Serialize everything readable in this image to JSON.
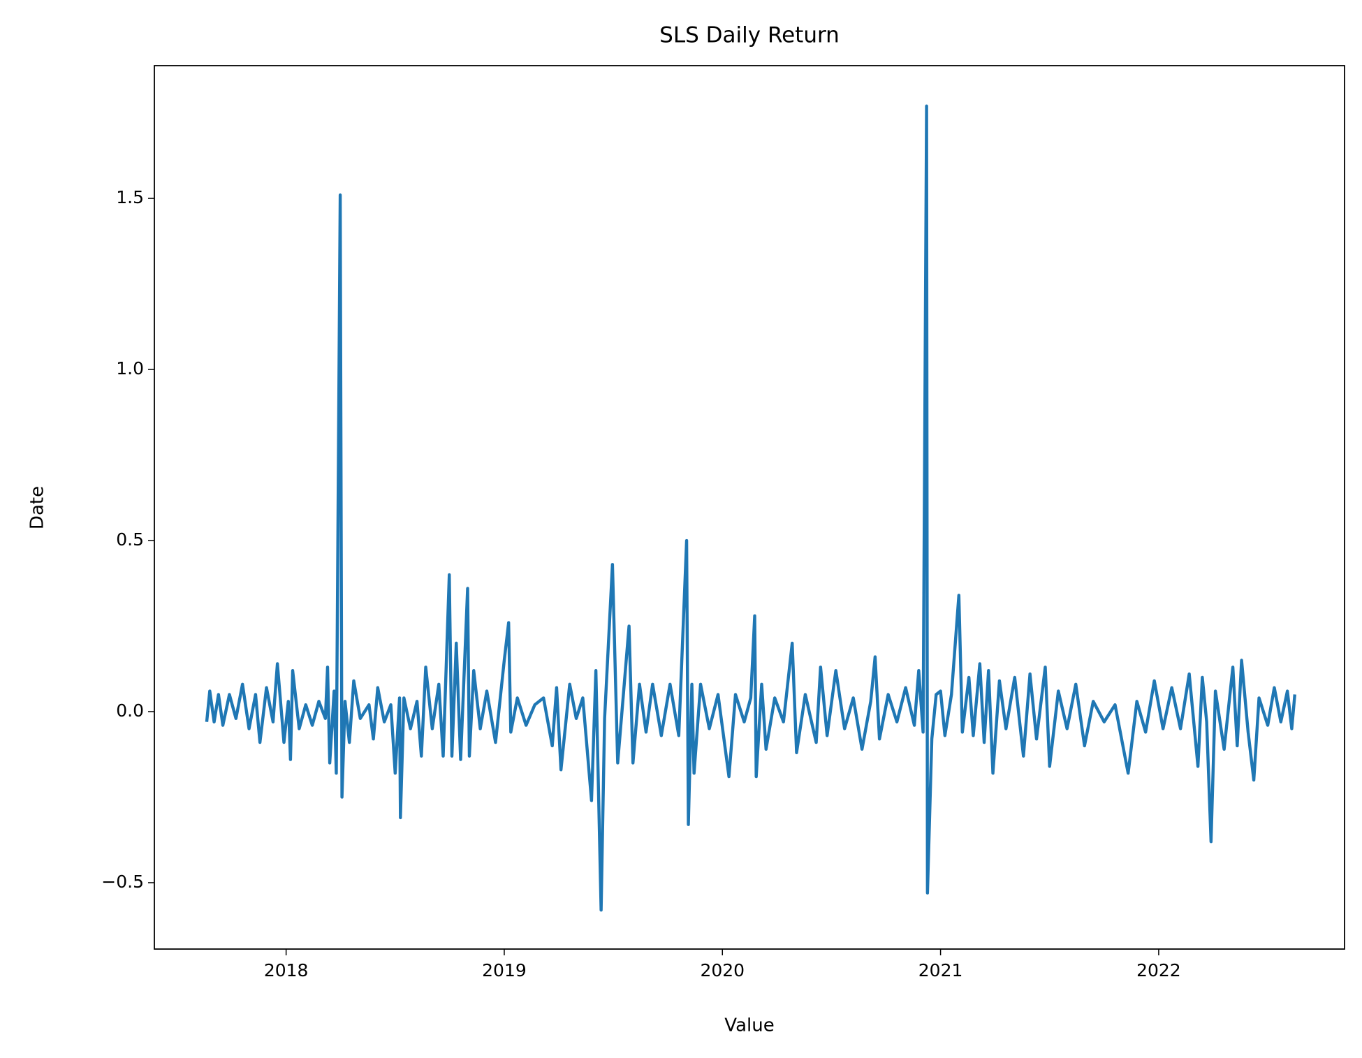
{
  "chart_data": {
    "type": "line",
    "title": "SLS Daily Return",
    "x_label": "Value",
    "y_label": "Date",
    "color": "#1f77b4",
    "grid": false,
    "x": [
      2017.636,
      2017.65,
      2017.67,
      2017.69,
      2017.71,
      2017.74,
      2017.77,
      2017.8,
      2017.83,
      2017.86,
      2017.88,
      2017.91,
      2017.94,
      2017.96,
      2017.99,
      2018.01,
      2018.02,
      2018.03,
      2018.06,
      2018.09,
      2018.12,
      2018.15,
      2018.18,
      2018.19,
      2018.2,
      2018.22,
      2018.23,
      2018.248,
      2018.256,
      2018.27,
      2018.29,
      2018.31,
      2018.34,
      2018.38,
      2018.4,
      2018.42,
      2018.45,
      2018.48,
      2018.5,
      2018.52,
      2018.524,
      2018.54,
      2018.57,
      2018.6,
      2018.62,
      2018.64,
      2018.67,
      2018.7,
      2018.72,
      2018.748,
      2018.76,
      2018.78,
      2018.8,
      2018.832,
      2018.84,
      2018.86,
      2018.89,
      2018.92,
      2018.96,
      2019.0,
      2019.02,
      2019.03,
      2019.06,
      2019.1,
      2019.14,
      2019.18,
      2019.22,
      2019.24,
      2019.26,
      2019.3,
      2019.33,
      2019.36,
      2019.4,
      2019.42,
      2019.444,
      2019.46,
      2019.496,
      2019.52,
      2019.55,
      2019.572,
      2019.59,
      2019.62,
      2019.65,
      2019.68,
      2019.72,
      2019.76,
      2019.8,
      2019.836,
      2019.844,
      2019.86,
      2019.87,
      2019.9,
      2019.94,
      2019.98,
      2020.03,
      2020.06,
      2020.1,
      2020.13,
      2020.148,
      2020.155,
      2020.18,
      2020.2,
      2020.24,
      2020.28,
      2020.32,
      2020.34,
      2020.38,
      2020.43,
      2020.45,
      2020.48,
      2020.52,
      2020.56,
      2020.6,
      2020.64,
      2020.68,
      2020.7,
      2020.72,
      2020.76,
      2020.8,
      2020.84,
      2020.88,
      2020.9,
      2020.92,
      2020.936,
      2020.94,
      2020.96,
      2020.98,
      2021.0,
      2021.02,
      2021.05,
      2021.084,
      2021.1,
      2021.13,
      2021.15,
      2021.18,
      2021.2,
      2021.22,
      2021.24,
      2021.27,
      2021.3,
      2021.34,
      2021.38,
      2021.41,
      2021.44,
      2021.48,
      2021.5,
      2021.54,
      2021.58,
      2021.62,
      2021.66,
      2021.7,
      2021.75,
      2021.8,
      2021.86,
      2021.9,
      2021.94,
      2021.98,
      2022.02,
      2022.06,
      2022.1,
      2022.14,
      2022.18,
      2022.2,
      2022.22,
      2022.24,
      2022.26,
      2022.3,
      2022.34,
      2022.36,
      2022.38,
      2022.41,
      2022.436,
      2022.46,
      2022.5,
      2022.53,
      2022.56,
      2022.59,
      2022.61,
      2022.624
    ],
    "values": [
      -0.03,
      0.06,
      -0.03,
      0.05,
      -0.04,
      0.05,
      -0.02,
      0.08,
      -0.05,
      0.05,
      -0.09,
      0.07,
      -0.03,
      0.14,
      -0.09,
      0.03,
      -0.14,
      0.12,
      -0.05,
      0.02,
      -0.04,
      0.03,
      -0.02,
      0.13,
      -0.15,
      0.06,
      -0.18,
      1.51,
      -0.25,
      0.03,
      -0.09,
      0.09,
      -0.02,
      0.02,
      -0.08,
      0.07,
      -0.03,
      0.02,
      -0.18,
      0.04,
      -0.31,
      0.04,
      -0.05,
      0.03,
      -0.13,
      0.13,
      -0.05,
      0.08,
      -0.13,
      0.4,
      -0.13,
      0.2,
      -0.14,
      0.36,
      -0.13,
      0.12,
      -0.05,
      0.06,
      -0.09,
      0.15,
      0.26,
      -0.06,
      0.04,
      -0.04,
      0.02,
      0.04,
      -0.1,
      0.07,
      -0.17,
      0.08,
      -0.02,
      0.04,
      -0.26,
      0.12,
      -0.58,
      -0.02,
      0.43,
      -0.15,
      0.08,
      0.25,
      -0.15,
      0.08,
      -0.06,
      0.08,
      -0.07,
      0.08,
      -0.07,
      0.5,
      -0.33,
      0.08,
      -0.18,
      0.08,
      -0.05,
      0.05,
      -0.19,
      0.05,
      -0.03,
      0.04,
      0.28,
      -0.19,
      0.08,
      -0.11,
      0.04,
      -0.03,
      0.2,
      -0.12,
      0.05,
      -0.09,
      0.13,
      -0.07,
      0.12,
      -0.05,
      0.04,
      -0.11,
      0.03,
      0.16,
      -0.08,
      0.05,
      -0.03,
      0.07,
      -0.04,
      0.12,
      -0.06,
      1.77,
      -0.53,
      -0.08,
      0.05,
      0.06,
      -0.07,
      0.05,
      0.34,
      -0.06,
      0.1,
      -0.07,
      0.14,
      -0.09,
      0.12,
      -0.18,
      0.09,
      -0.05,
      0.1,
      -0.13,
      0.11,
      -0.08,
      0.13,
      -0.16,
      0.06,
      -0.05,
      0.08,
      -0.1,
      0.03,
      -0.03,
      0.02,
      -0.18,
      0.03,
      -0.06,
      0.09,
      -0.05,
      0.07,
      -0.05,
      0.11,
      -0.16,
      0.1,
      -0.03,
      -0.38,
      0.06,
      -0.11,
      0.13,
      -0.1,
      0.15,
      -0.06,
      -0.2,
      0.04,
      -0.04,
      0.07,
      -0.03,
      0.06,
      -0.05,
      0.05
    ],
    "xlim": [
      2017.396,
      2022.852
    ],
    "xticks": [
      2018,
      2019,
      2020,
      2021,
      2022
    ],
    "ylim": [
      -0.694,
      1.888
    ],
    "yticks": [
      {
        "value": -0.5,
        "label": "−0.5"
      },
      {
        "value": 0,
        "label": "0.0"
      },
      0.5,
      {
        "value": 1,
        "label": "1.0"
      },
      1.5
    ]
  }
}
